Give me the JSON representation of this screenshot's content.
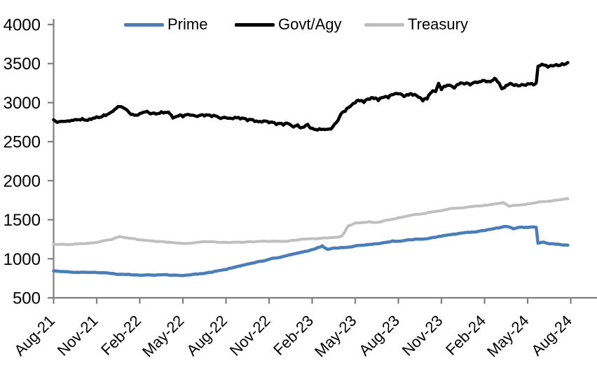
{
  "chart_data": {
    "type": "line",
    "title": "",
    "legend": {
      "position": "top",
      "entries": [
        "Prime",
        "Govt/Agy",
        "Treasury"
      ]
    },
    "x_axis": {
      "categories": [
        "Aug-21",
        "Nov-21",
        "Feb-22",
        "May-22",
        "Aug-22",
        "Nov-22",
        "Feb-23",
        "May-23",
        "Aug-23",
        "Nov-23",
        "Feb-24",
        "May-24",
        "Aug-24"
      ],
      "tick_interval_months": 3,
      "label_rotation_deg": -45
    },
    "y_axis": {
      "min": 500,
      "max": 4000,
      "tick_step": 500,
      "ticks": [
        4000,
        3500,
        3000,
        2500,
        2000,
        1500,
        1000,
        500
      ]
    },
    "months_total": 36,
    "data_end_month": 35.8,
    "grid": "off",
    "axis_color": "#7F7F7F",
    "text_color": "#000000",
    "background": "#FFFFFF",
    "series": [
      {
        "name": "Prime",
        "color": "#4A7EBB",
        "points": [
          [
            0,
            845
          ],
          [
            1,
            838
          ],
          [
            2,
            830
          ],
          [
            3,
            824
          ],
          [
            4,
            810
          ],
          [
            5,
            798
          ],
          [
            6,
            788
          ],
          [
            7,
            784
          ],
          [
            8,
            790
          ],
          [
            9,
            784
          ],
          [
            10,
            800
          ],
          [
            11,
            822
          ],
          [
            12,
            858
          ],
          [
            13,
            905
          ],
          [
            14,
            950
          ],
          [
            15,
            995
          ],
          [
            16,
            1032
          ],
          [
            17,
            1075
          ],
          [
            18,
            1120
          ],
          [
            18.7,
            1170
          ],
          [
            19.1,
            1120
          ],
          [
            19.5,
            1140
          ],
          [
            20,
            1148
          ],
          [
            21,
            1165
          ],
          [
            22,
            1188
          ],
          [
            23,
            1210
          ],
          [
            23.6,
            1232
          ],
          [
            24,
            1225
          ],
          [
            25,
            1240
          ],
          [
            26,
            1255
          ],
          [
            27,
            1285
          ],
          [
            28,
            1312
          ],
          [
            29,
            1335
          ],
          [
            30,
            1360
          ],
          [
            31,
            1392
          ],
          [
            31.5,
            1410
          ],
          [
            32,
            1382
          ],
          [
            32.4,
            1402
          ],
          [
            33,
            1398
          ],
          [
            33.6,
            1400
          ],
          [
            33.72,
            1195
          ],
          [
            34.1,
            1212
          ],
          [
            34.5,
            1190
          ],
          [
            35,
            1183
          ],
          [
            35.8,
            1175
          ]
        ]
      },
      {
        "name": "Govt/Agy",
        "color": "#000000",
        "points": [
          [
            0,
            2780
          ],
          [
            0.5,
            2762
          ],
          [
            1,
            2772
          ],
          [
            1.5,
            2792
          ],
          [
            2,
            2806
          ],
          [
            2.5,
            2796
          ],
          [
            3,
            2828
          ],
          [
            3.5,
            2850
          ],
          [
            4,
            2882
          ],
          [
            4.6,
            2940
          ],
          [
            5,
            2918
          ],
          [
            5.5,
            2856
          ],
          [
            6,
            2864
          ],
          [
            6.5,
            2892
          ],
          [
            7,
            2874
          ],
          [
            7.5,
            2892
          ],
          [
            8,
            2878
          ],
          [
            8.3,
            2800
          ],
          [
            8.7,
            2822
          ],
          [
            9,
            2808
          ],
          [
            9.5,
            2830
          ],
          [
            10,
            2816
          ],
          [
            10.5,
            2820
          ],
          [
            11,
            2812
          ],
          [
            11.5,
            2808
          ],
          [
            12,
            2802
          ],
          [
            12.5,
            2790
          ],
          [
            13,
            2782
          ],
          [
            13.5,
            2762
          ],
          [
            14,
            2752
          ],
          [
            14.5,
            2742
          ],
          [
            15,
            2732
          ],
          [
            15.5,
            2712
          ],
          [
            16,
            2705
          ],
          [
            16.3,
            2726
          ],
          [
            16.7,
            2686
          ],
          [
            17,
            2722
          ],
          [
            17.3,
            2692
          ],
          [
            17.7,
            2726
          ],
          [
            18,
            2682
          ],
          [
            18.5,
            2672
          ],
          [
            19,
            2656
          ],
          [
            19.3,
            2662
          ],
          [
            19.7,
            2750
          ],
          [
            20,
            2852
          ],
          [
            20.3,
            2886
          ],
          [
            20.6,
            2942
          ],
          [
            21,
            2992
          ],
          [
            21.3,
            3012
          ],
          [
            21.6,
            2996
          ],
          [
            22,
            3032
          ],
          [
            22.3,
            3042
          ],
          [
            22.6,
            3016
          ],
          [
            23,
            3062
          ],
          [
            23.3,
            3050
          ],
          [
            23.6,
            3098
          ],
          [
            24,
            3102
          ],
          [
            24.4,
            3076
          ],
          [
            24.7,
            3086
          ],
          [
            25,
            3088
          ],
          [
            25.4,
            3062
          ],
          [
            25.7,
            3012
          ],
          [
            26,
            3036
          ],
          [
            26.3,
            3122
          ],
          [
            26.6,
            3134
          ],
          [
            26.8,
            3240
          ],
          [
            27,
            3158
          ],
          [
            27.3,
            3198
          ],
          [
            27.6,
            3222
          ],
          [
            27.9,
            3186
          ],
          [
            28.2,
            3226
          ],
          [
            28.6,
            3230
          ],
          [
            29,
            3216
          ],
          [
            29.5,
            3246
          ],
          [
            30,
            3282
          ],
          [
            30.4,
            3268
          ],
          [
            30.7,
            3312
          ],
          [
            31,
            3256
          ],
          [
            31.2,
            3176
          ],
          [
            31.5,
            3228
          ],
          [
            31.8,
            3252
          ],
          [
            32.2,
            3240
          ],
          [
            32.6,
            3242
          ],
          [
            33,
            3248
          ],
          [
            33.3,
            3252
          ],
          [
            33.6,
            3256
          ],
          [
            33.72,
            3470
          ],
          [
            34,
            3492
          ],
          [
            34.3,
            3482
          ],
          [
            34.6,
            3478
          ],
          [
            35,
            3496
          ],
          [
            35.4,
            3506
          ],
          [
            35.8,
            3522
          ]
        ]
      },
      {
        "name": "Treasury",
        "color": "#BFBFBF",
        "points": [
          [
            0,
            1185
          ],
          [
            1,
            1180
          ],
          [
            2,
            1190
          ],
          [
            3,
            1212
          ],
          [
            4,
            1245
          ],
          [
            4.6,
            1285
          ],
          [
            5,
            1268
          ],
          [
            6,
            1242
          ],
          [
            7,
            1228
          ],
          [
            8,
            1215
          ],
          [
            9,
            1200
          ],
          [
            10,
            1212
          ],
          [
            11,
            1220
          ],
          [
            12,
            1215
          ],
          [
            13,
            1210
          ],
          [
            14,
            1215
          ],
          [
            15,
            1220
          ],
          [
            16,
            1222
          ],
          [
            17,
            1240
          ],
          [
            18,
            1258
          ],
          [
            19,
            1262
          ],
          [
            19.8,
            1278
          ],
          [
            20.1,
            1302
          ],
          [
            20.5,
            1425
          ],
          [
            21,
            1462
          ],
          [
            21.5,
            1470
          ],
          [
            22,
            1478
          ],
          [
            22.5,
            1468
          ],
          [
            23,
            1490
          ],
          [
            23.5,
            1506
          ],
          [
            24,
            1530
          ],
          [
            25,
            1560
          ],
          [
            26,
            1590
          ],
          [
            27,
            1616
          ],
          [
            28,
            1645
          ],
          [
            29,
            1668
          ],
          [
            30,
            1690
          ],
          [
            31,
            1710
          ],
          [
            31.3,
            1722
          ],
          [
            31.7,
            1672
          ],
          [
            32,
            1688
          ],
          [
            33,
            1706
          ],
          [
            34,
            1732
          ],
          [
            35,
            1750
          ],
          [
            35.8,
            1765
          ]
        ]
      }
    ]
  }
}
